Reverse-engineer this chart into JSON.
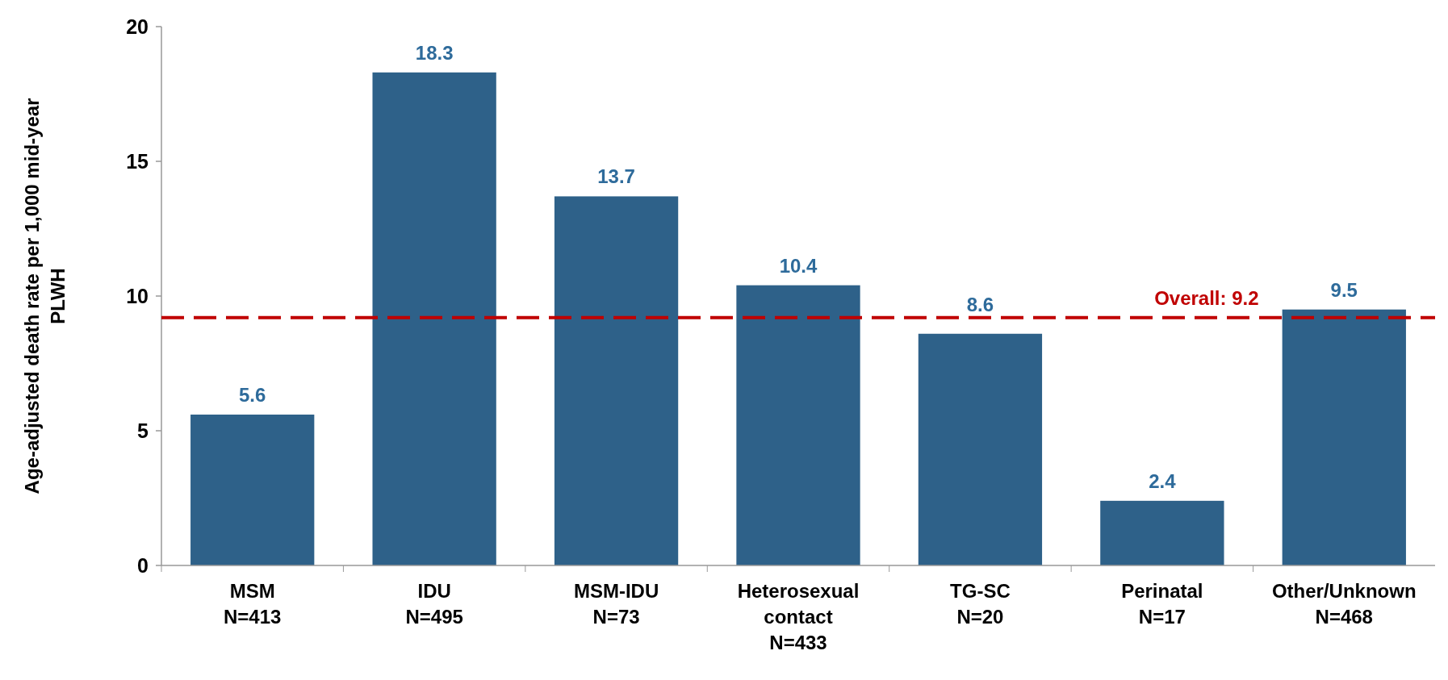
{
  "chart_data": {
    "type": "bar",
    "ylabel": "Age-adjusted death rate per 1,000 mid-year PLWH",
    "categories": [
      "MSM\nN=413",
      "IDU\nN=495",
      "MSM-IDU\nN=73",
      "Heterosexual\ncontact\nN=433",
      "TG-SC\nN=20",
      "Perinatal\nN=17",
      "Other/Unknown\nN=468"
    ],
    "values": [
      5.6,
      18.3,
      13.7,
      10.4,
      8.6,
      2.4,
      9.5
    ],
    "color": "#2e6189",
    "data_labels": true,
    "ylim": [
      0,
      20
    ],
    "yticks": [
      0,
      5,
      10,
      15,
      20
    ],
    "grid": false,
    "ref_lines": [
      {
        "axis": "y",
        "value": 9.2,
        "label": "Overall: 9.2",
        "color": "#c00000",
        "line_style": "dashed"
      }
    ]
  }
}
